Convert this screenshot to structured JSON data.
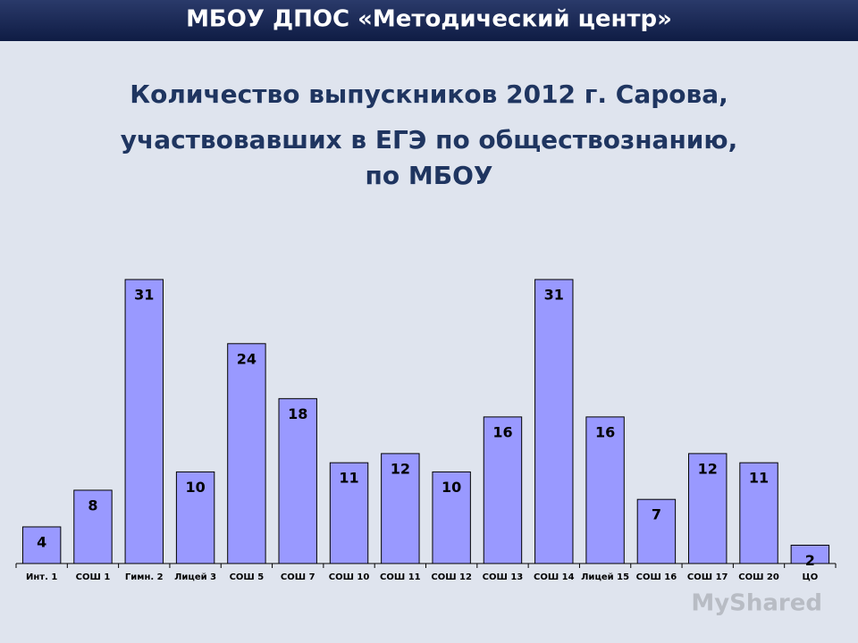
{
  "header": "МБОУ ДПОС «Методический центр»",
  "chart_data": {
    "type": "bar",
    "title": [
      "Количество выпускников 2012 г. Сарова,",
      "участвовавших в ЕГЭ по обществознанию,",
      "по МБОУ"
    ],
    "categories": [
      "Инт. 1",
      "СОШ 1",
      "Гимн. 2",
      "Лицей 3",
      "СОШ 5",
      "СОШ 7",
      "СОШ 10",
      "СОШ 11",
      "СОШ 12",
      "СОШ 13",
      "СОШ 14",
      "Лицей 15",
      "СОШ 16",
      "СОШ 17",
      "СОШ 20",
      "ЦО"
    ],
    "values": [
      4,
      8,
      31,
      10,
      24,
      18,
      11,
      12,
      10,
      16,
      31,
      16,
      7,
      12,
      11,
      2
    ],
    "color": "#9999ff"
  },
  "watermark": "MyShared"
}
